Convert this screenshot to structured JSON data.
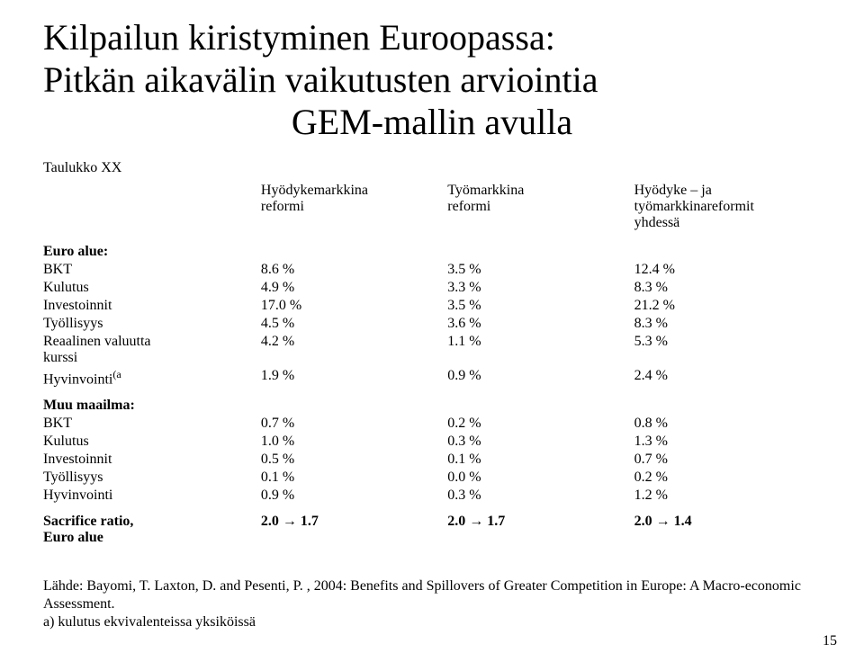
{
  "title_line1": "Kilpailun kiristyminen Euroopassa:",
  "title_line2": "Pitkän aikavälin vaikutusten arviointia",
  "title_line3": "GEM-mallin avulla",
  "table_label": "Taulukko XX",
  "headers": {
    "col_a_l1": "Hyödykemarkkina",
    "col_a_l2": "reformi",
    "col_b_l1": "Työmarkkina",
    "col_b_l2": "reformi",
    "col_c_l1": "Hyödyke – ja",
    "col_c_l2": "työmarkkinareformit",
    "col_c_l3": "yhdessä"
  },
  "section1": {
    "heading": "Euro alue:",
    "rows": [
      {
        "label": "BKT",
        "a": "8.6 %",
        "b": "3.5 %",
        "c": "12.4 %"
      },
      {
        "label": "Kulutus",
        "a": "4.9 %",
        "b": "3.3 %",
        "c": "8.3 %"
      },
      {
        "label": "Investoinnit",
        "a": "17.0 %",
        "b": "3.5 %",
        "c": "21.2 %"
      },
      {
        "label": "Työllisyys",
        "a": "4.5 %",
        "b": "3.6 %",
        "c": "8.3 %"
      },
      {
        "label": "Reaalinen valuutta kurssi",
        "a": "4.2 %",
        "b": "1.1 %",
        "c": "5.3 %",
        "wrap": true
      },
      {
        "label": "Hyvinvointi",
        "sup": "(a",
        "a": "1.9 %",
        "b": "0.9 %",
        "c": "2.4 %"
      }
    ]
  },
  "section2": {
    "heading": "Muu maailma:",
    "rows": [
      {
        "label": "BKT",
        "a": "0.7 %",
        "b": "0.2 %",
        "c": "0.8 %"
      },
      {
        "label": "Kulutus",
        "a": "1.0 %",
        "b": "0.3 %",
        "c": "1.3 %"
      },
      {
        "label": "Investoinnit",
        "a": "0.5 %",
        "b": "0.1 %",
        "c": "0.7 %"
      },
      {
        "label": "Työllisyys",
        "a": "0.1 %",
        "b": "0.0 %",
        "c": "0.2 %"
      },
      {
        "label": "Hyvinvointi",
        "a": "0.9 %",
        "b": "0.3 %",
        "c": "1.2 %"
      }
    ]
  },
  "sacrifice": {
    "label_l1": "Sacrifice ratio,",
    "label_l2": "Euro alue",
    "a_pre": "2.0 ",
    "a_post": "  1.7",
    "b_pre": "2.0 ",
    "b_post": " 1.7",
    "c_pre": "2.0 ",
    "c_post": " 1.4",
    "arrow": "→"
  },
  "footnote1": "Lähde: Bayomi, T. Laxton, D. and Pesenti, P. , 2004: Benefits and Spillovers of Greater Competition in Europe: A Macro-economic Assessment.",
  "footnote2": "a) kulutus ekvivalenteissa yksiköissä",
  "page_number": "15"
}
